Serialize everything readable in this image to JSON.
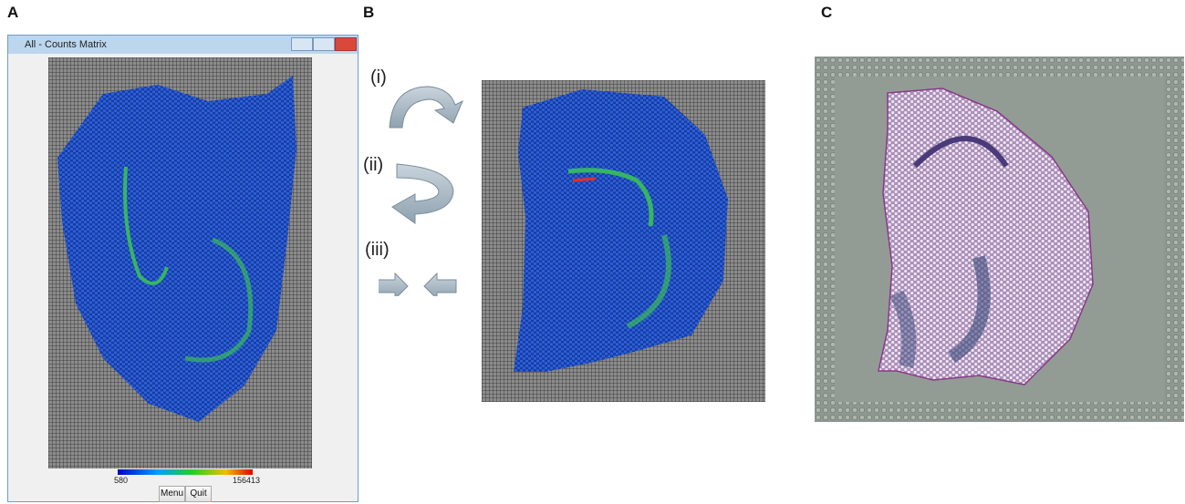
{
  "panels": {
    "a": "A",
    "b": "B",
    "c": "C"
  },
  "window": {
    "title": "All - Counts Matrix",
    "buttons": [
      "Menu",
      "Quit"
    ]
  },
  "colorbar": {
    "min": 580,
    "max": 156413
  },
  "steps": [
    "(i)",
    "(ii)",
    "(iii)"
  ]
}
